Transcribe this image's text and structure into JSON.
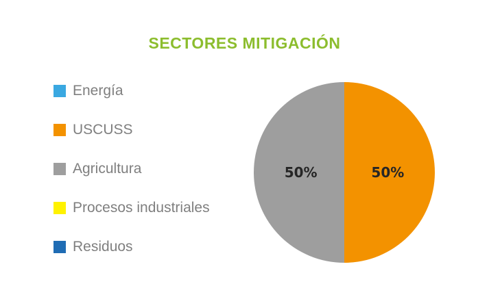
{
  "chart_data": {
    "type": "pie",
    "title": "SECTORES MITIGACIÓN",
    "categories": [
      "Energía",
      "USCUSS",
      "Agricultura",
      "Procesos industriales",
      "Residuos"
    ],
    "values": [
      0,
      50,
      50,
      0,
      0
    ],
    "value_labels": [
      "",
      "50%",
      "50%",
      "",
      ""
    ],
    "colors": [
      "#3aa8e1",
      "#f39200",
      "#9e9e9e",
      "#fff200",
      "#1f6cb4"
    ],
    "legend_position": "left",
    "start_angle_deg": 0,
    "direction": "clockwise"
  },
  "theme": {
    "title_color": "#8cbd2e",
    "legend_text_color": "#7f7f7f",
    "label_color": "#262626"
  }
}
